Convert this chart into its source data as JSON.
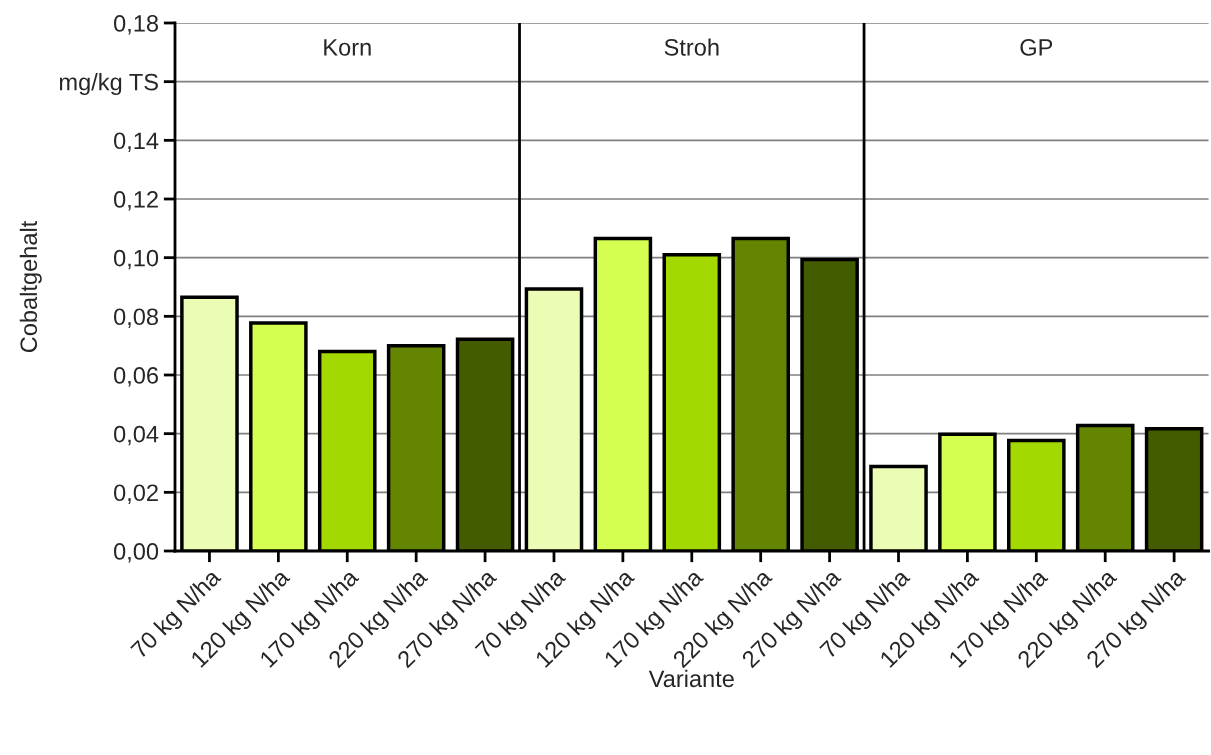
{
  "chart_data": {
    "type": "bar",
    "xlabel": "Variante",
    "ylabel": "Cobaltgehalt",
    "categories": [
      "70 kg N/ha",
      "120 kg N/ha",
      "170 kg N/ha",
      "220 kg N/ha",
      "270 kg N/ha",
      "70 kg N/ha",
      "120 kg N/ha",
      "170 kg N/ha",
      "220 kg N/ha",
      "270 kg N/ha",
      "70 kg N/ha",
      "120 kg N/ha",
      "170 kg N/ha",
      "220 kg N/ha",
      "270 kg N/ha"
    ],
    "values": [
      0.0865,
      0.0777,
      0.068,
      0.07,
      0.0722,
      0.0893,
      0.1065,
      0.101,
      0.1065,
      0.0994,
      0.0288,
      0.0398,
      0.0377,
      0.0428,
      0.0417
    ],
    "colors": [
      "#ebfdb5",
      "#d4ff50",
      "#a3d900",
      "#648500",
      "#445c00",
      "#ebfdb5",
      "#d4ff50",
      "#a3d900",
      "#648500",
      "#445c00",
      "#ebfdb5",
      "#d4ff50",
      "#a3d900",
      "#648500",
      "#445c00"
    ],
    "ylim": [
      0,
      0.18
    ],
    "yticks": [
      {
        "value": 0,
        "label": "0,00"
      },
      {
        "value": 0.02,
        "label": "0,02"
      },
      {
        "value": 0.04,
        "label": "0,04"
      },
      {
        "value": 0.06,
        "label": "0,06"
      },
      {
        "value": 0.08,
        "label": "0,08"
      },
      {
        "value": 0.1,
        "label": "0,10"
      },
      {
        "value": 0.12,
        "label": "0,12"
      },
      {
        "value": 0.14,
        "label": "0,14"
      },
      {
        "value": 0.16,
        "label": "mg/kg TS"
      },
      {
        "value": 0.18,
        "label": "0,18"
      }
    ],
    "grid": "y",
    "annotations": [
      "Korn",
      "Stroh",
      "GP"
    ]
  }
}
